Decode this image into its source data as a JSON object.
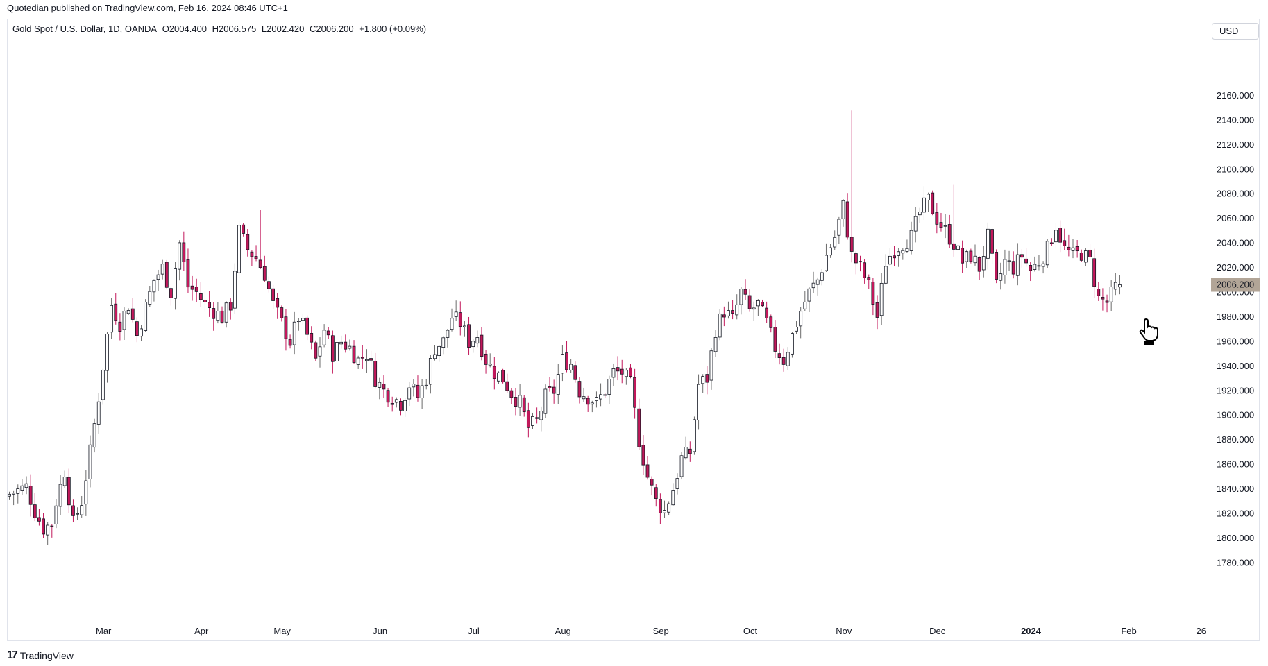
{
  "header": {
    "publisher_text": "Quotedian published on TradingView.com, Feb 16, 2024 08:46 UTC+1"
  },
  "legend": {
    "symbol": "Gold Spot / U.S. Dollar, 1D, OANDA",
    "open": "O2004.400",
    "high": "H2006.575",
    "low": "L2002.420",
    "close": "C2006.200",
    "change": "+1.800 (+0.09%)"
  },
  "toolbar": {
    "currency_label": "USD"
  },
  "footer": {
    "brand": "TradingView",
    "logo_icon": "tradingview-logo-icon"
  },
  "colors": {
    "up": "#ffffff",
    "down": "#c2185b",
    "wick_down": "#c2185b",
    "outline": "#131722",
    "price_label_bg": "#b2a597"
  },
  "chart_data": {
    "type": "candlestick",
    "symbol": "Gold Spot / U.S. Dollar",
    "interval": "1D",
    "ylim": [
      1770,
      2180
    ],
    "y_ticks": [
      "1780.000",
      "1800.000",
      "1820.000",
      "1840.000",
      "1860.000",
      "1880.000",
      "1900.000",
      "1920.000",
      "1940.000",
      "1960.000",
      "1980.000",
      "2000.000",
      "2020.000",
      "2040.000",
      "2060.000",
      "2080.000",
      "2100.000",
      "2120.000",
      "2140.000",
      "2160.000"
    ],
    "x_ticks": [
      {
        "label": "Mar",
        "index": 13,
        "bold": false
      },
      {
        "label": "Apr",
        "index": 36,
        "bold": false
      },
      {
        "label": "May",
        "index": 55,
        "bold": false
      },
      {
        "label": "Jun",
        "index": 78,
        "bold": false
      },
      {
        "label": "Jul",
        "index": 100,
        "bold": false
      },
      {
        "label": "Aug",
        "index": 121,
        "bold": false
      },
      {
        "label": "Sep",
        "index": 144,
        "bold": false
      },
      {
        "label": "Oct",
        "index": 165,
        "bold": false
      },
      {
        "label": "Nov",
        "index": 187,
        "bold": false
      },
      {
        "label": "Dec",
        "index": 209,
        "bold": false
      },
      {
        "label": "2024",
        "index": 231,
        "bold": true
      },
      {
        "label": "Feb",
        "index": 254,
        "bold": false
      },
      {
        "label": "26",
        "index": 271,
        "bold": false
      }
    ],
    "last_price_label": "2006.200",
    "last_price": 2006.2,
    "close_anchors": [
      [
        0,
        1836
      ],
      [
        4,
        1842
      ],
      [
        6,
        1822
      ],
      [
        8,
        1808
      ],
      [
        10,
        1812
      ],
      [
        11,
        1830
      ],
      [
        13,
        1855
      ],
      [
        15,
        1812
      ],
      [
        17,
        1830
      ],
      [
        19,
        1870
      ],
      [
        21,
        1915
      ],
      [
        24,
        1990
      ],
      [
        26,
        1975
      ],
      [
        28,
        1990
      ],
      [
        30,
        1965
      ],
      [
        32,
        1988
      ],
      [
        34,
        2010
      ],
      [
        36,
        2020
      ],
      [
        38,
        2000
      ],
      [
        40,
        2040
      ],
      [
        42,
        2005
      ],
      [
        44,
        2000
      ],
      [
        46,
        1990
      ],
      [
        48,
        1985
      ],
      [
        50,
        1980
      ],
      [
        52,
        1990
      ],
      [
        54,
        2050
      ],
      [
        56,
        2035
      ],
      [
        58,
        2028
      ],
      [
        60,
        2015
      ],
      [
        62,
        1990
      ],
      [
        64,
        1975
      ],
      [
        66,
        1960
      ],
      [
        68,
        1980
      ],
      [
        70,
        1965
      ],
      [
        72,
        1945
      ],
      [
        74,
        1970
      ],
      [
        76,
        1950
      ],
      [
        78,
        1960
      ],
      [
        80,
        1955
      ],
      [
        82,
        1945
      ],
      [
        84,
        1950
      ],
      [
        86,
        1930
      ],
      [
        88,
        1920
      ],
      [
        90,
        1915
      ],
      [
        92,
        1910
      ],
      [
        94,
        1925
      ],
      [
        96,
        1915
      ],
      [
        98,
        1930
      ],
      [
        100,
        1955
      ],
      [
        102,
        1960
      ],
      [
        104,
        1980
      ],
      [
        106,
        1975
      ],
      [
        108,
        1960
      ],
      [
        110,
        1965
      ],
      [
        112,
        1945
      ],
      [
        114,
        1935
      ],
      [
        116,
        1930
      ],
      [
        118,
        1918
      ],
      [
        120,
        1910
      ],
      [
        122,
        1890
      ],
      [
        124,
        1895
      ],
      [
        126,
        1915
      ],
      [
        128,
        1920
      ],
      [
        130,
        1945
      ],
      [
        132,
        1942
      ],
      [
        134,
        1920
      ],
      [
        136,
        1915
      ],
      [
        138,
        1910
      ],
      [
        140,
        1920
      ],
      [
        142,
        1935
      ],
      [
        144,
        1935
      ],
      [
        146,
        1925
      ],
      [
        148,
        1880
      ],
      [
        150,
        1850
      ],
      [
        152,
        1830
      ],
      [
        154,
        1822
      ],
      [
        156,
        1840
      ],
      [
        158,
        1865
      ],
      [
        160,
        1870
      ],
      [
        162,
        1925
      ],
      [
        164,
        1930
      ],
      [
        166,
        1970
      ],
      [
        168,
        1985
      ],
      [
        170,
        1978
      ],
      [
        172,
        2000
      ],
      [
        174,
        1985
      ],
      [
        176,
        1990
      ],
      [
        178,
        1975
      ],
      [
        180,
        1955
      ],
      [
        182,
        1945
      ],
      [
        184,
        1965
      ],
      [
        186,
        1985
      ],
      [
        188,
        2000
      ],
      [
        190,
        2010
      ],
      [
        192,
        2030
      ],
      [
        194,
        2045
      ],
      [
        196,
        2070
      ],
      [
        198,
        2030
      ],
      [
        200,
        2020
      ],
      [
        202,
        2005
      ],
      [
        204,
        1980
      ],
      [
        206,
        2025
      ],
      [
        208,
        2035
      ],
      [
        210,
        2040
      ],
      [
        212,
        2045
      ],
      [
        214,
        2065
      ],
      [
        216,
        2075
      ],
      [
        218,
        2060
      ],
      [
        220,
        2050
      ],
      [
        222,
        2040
      ],
      [
        224,
        2025
      ],
      [
        226,
        2030
      ],
      [
        228,
        2020
      ],
      [
        230,
        2045
      ],
      [
        232,
        2005
      ],
      [
        234,
        2025
      ],
      [
        236,
        2020
      ],
      [
        238,
        2030
      ],
      [
        240,
        2018
      ],
      [
        242,
        2025
      ],
      [
        244,
        2035
      ],
      [
        246,
        2055
      ],
      [
        248,
        2035
      ],
      [
        250,
        2030
      ],
      [
        252,
        2032
      ],
      [
        254,
        2025
      ],
      [
        256,
        1995
      ],
      [
        258,
        1992
      ],
      [
        260,
        2004
      ],
      [
        261,
        2006.2
      ]
    ],
    "spikes": [
      {
        "index": 198,
        "high": 2148
      },
      {
        "index": 59,
        "high": 2067
      },
      {
        "index": 222,
        "high": 2088
      }
    ]
  }
}
